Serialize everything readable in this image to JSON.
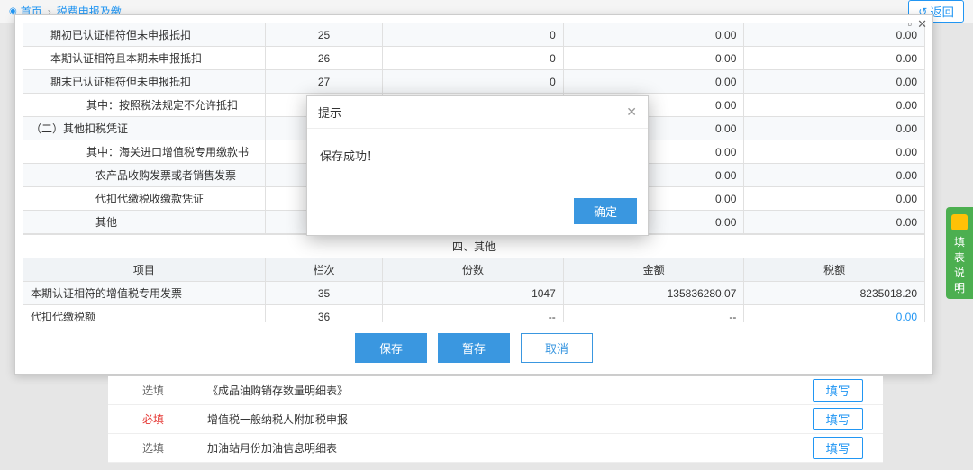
{
  "breadcrumb": {
    "home": "首页",
    "section": "税费申报及缴"
  },
  "backBtn": "返回",
  "panel": {
    "rows": [
      {
        "label": "期初已认证相符但未申报抵扣",
        "indent": 1,
        "lan": "25",
        "c3": "0",
        "c4": "0.00",
        "c5": "0.00"
      },
      {
        "label": "本期认证相符且本期未申报抵扣",
        "indent": 1,
        "lan": "26",
        "c3": "0",
        "c4": "0.00",
        "c5": "0.00"
      },
      {
        "label": "期末已认证相符但未申报抵扣",
        "indent": 1,
        "lan": "27",
        "c3": "0",
        "c4": "0.00",
        "c5": "0.00"
      },
      {
        "label": "其中：按照税法规定不允许抵扣",
        "indent": 2,
        "lan": "",
        "c3": "",
        "c4": "0.00",
        "c5": "0.00"
      },
      {
        "label": "（二）其他扣税凭证",
        "indent": 0,
        "lan": "",
        "c3": "",
        "c4": "0.00",
        "c5": "0.00"
      },
      {
        "label": "其中：海关进口增值税专用缴款书",
        "indent": 2,
        "lan": "",
        "c3": "",
        "c4": "0.00",
        "c5": "0.00"
      },
      {
        "label": "农产品收购发票或者销售发票",
        "indent": 3,
        "lan": "",
        "c3": "",
        "c4": "0.00",
        "c5": "0.00"
      },
      {
        "label": "代扣代缴税收缴款凭证",
        "indent": 3,
        "lan": "",
        "c3": "",
        "c4": "0.00",
        "c5": "0.00"
      },
      {
        "label": "其他",
        "indent": 3,
        "lan": "",
        "c3": "",
        "c4": "0.00",
        "c5": "0.00"
      }
    ],
    "sectionTitle": "四、其他",
    "headers": {
      "c1": "项目",
      "c2": "栏次",
      "c3": "份数",
      "c4": "金额",
      "c5": "税额"
    },
    "rows2": [
      {
        "label": "本期认证相符的增值税专用发票",
        "lan": "35",
        "c3": "1047",
        "c4": "135836280.07",
        "c5": "8235018.20"
      },
      {
        "label": "代扣代缴税额",
        "lan": "36",
        "c3": "--",
        "c4": "--",
        "c5": "0.00",
        "c5blue": true
      }
    ],
    "actions": {
      "save": "保存",
      "tempsave": "暂存",
      "cancel": "取消"
    }
  },
  "bottom": [
    {
      "tag": "选填",
      "req": false,
      "name": "《成品油购销存数量明细表》",
      "btn": "填写"
    },
    {
      "tag": "必填",
      "req": true,
      "name": "增值税一般纳税人附加税申报",
      "btn": "填写"
    },
    {
      "tag": "选填",
      "req": false,
      "name": "加油站月份加油信息明细表",
      "btn": "填写"
    }
  ],
  "sideTab": "填表说明",
  "modal": {
    "title": "提示",
    "message": "保存成功！",
    "ok": "确定"
  }
}
